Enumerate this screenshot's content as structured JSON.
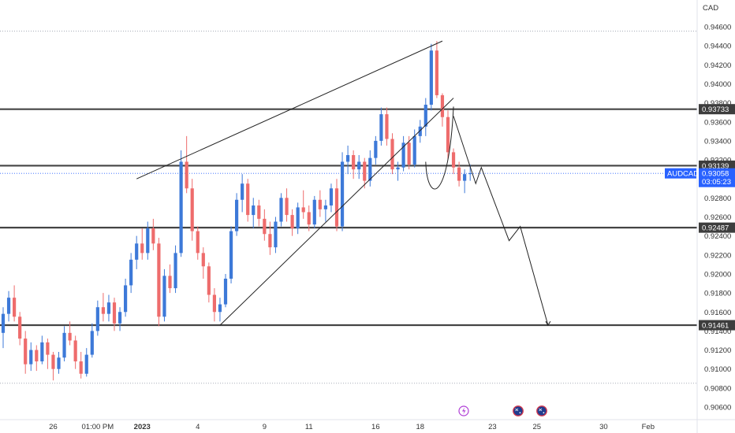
{
  "chart_data": {
    "type": "candlestick",
    "symbol": "AUDCAD",
    "currency": "CAD",
    "last_price": "0.93058",
    "countdown": "03:05:23",
    "ylim": [
      0.905,
      0.947
    ],
    "y_ticks": [
      "0.94600",
      "0.94400",
      "0.94200",
      "0.94000",
      "0.93800",
      "0.93600",
      "0.93400",
      "0.93200",
      "0.93000",
      "0.92800",
      "0.92600",
      "0.92400",
      "0.92200",
      "0.92000",
      "0.91800",
      "0.91600",
      "0.91400",
      "0.91200",
      "0.91000",
      "0.90800",
      "0.90600"
    ],
    "x_ticks": [
      "26",
      "01:00 PM",
      "2023",
      "4",
      "9",
      "11",
      "16",
      "18",
      "23",
      "25",
      "30",
      "Feb"
    ],
    "x_tick_bars": [
      9,
      17,
      25,
      35,
      47,
      55,
      67,
      75,
      88,
      96,
      108,
      116
    ],
    "levels": [
      {
        "price": 0.93733,
        "label": "0.93733"
      },
      {
        "price": 0.93139,
        "label": "0.93139"
      },
      {
        "price": 0.92487,
        "label": "0.92487"
      },
      {
        "price": 0.91461,
        "label": "0.91461"
      }
    ],
    "dotted_levels": [
      0.94555,
      0.9085
    ],
    "candles": [
      [
        0.9138,
        0.9165,
        0.9122,
        0.9158
      ],
      [
        0.9158,
        0.9182,
        0.915,
        0.9175
      ],
      [
        0.9175,
        0.9188,
        0.915,
        0.9155
      ],
      [
        0.9155,
        0.916,
        0.9125,
        0.9132
      ],
      [
        0.9132,
        0.914,
        0.9095,
        0.9105
      ],
      [
        0.9105,
        0.9128,
        0.9098,
        0.912
      ],
      [
        0.912,
        0.9125,
        0.9098,
        0.9108
      ],
      [
        0.9108,
        0.9135,
        0.9105,
        0.9128
      ],
      [
        0.9128,
        0.9132,
        0.91,
        0.9115
      ],
      [
        0.9115,
        0.9118,
        0.9088,
        0.91
      ],
      [
        0.91,
        0.9118,
        0.9095,
        0.9112
      ],
      [
        0.9112,
        0.9145,
        0.9108,
        0.9138
      ],
      [
        0.9138,
        0.915,
        0.9125,
        0.913
      ],
      [
        0.913,
        0.9135,
        0.91,
        0.9108
      ],
      [
        0.9108,
        0.9118,
        0.909,
        0.9095
      ],
      [
        0.9095,
        0.9122,
        0.9092,
        0.9115
      ],
      [
        0.9115,
        0.9148,
        0.9112,
        0.914
      ],
      [
        0.914,
        0.9172,
        0.9135,
        0.9165
      ],
      [
        0.9165,
        0.918,
        0.915,
        0.9158
      ],
      [
        0.9158,
        0.9178,
        0.915,
        0.917
      ],
      [
        0.917,
        0.9175,
        0.914,
        0.9148
      ],
      [
        0.9148,
        0.9165,
        0.914,
        0.916
      ],
      [
        0.916,
        0.9195,
        0.9155,
        0.9188
      ],
      [
        0.9188,
        0.9222,
        0.918,
        0.9215
      ],
      [
        0.9215,
        0.924,
        0.9205,
        0.9232
      ],
      [
        0.9232,
        0.9248,
        0.9215,
        0.9222
      ],
      [
        0.9222,
        0.9255,
        0.9215,
        0.9248
      ],
      [
        0.9248,
        0.9258,
        0.9225,
        0.9232
      ],
      [
        0.9232,
        0.9238,
        0.9145,
        0.9155
      ],
      [
        0.9155,
        0.9205,
        0.915,
        0.9198
      ],
      [
        0.9198,
        0.921,
        0.918,
        0.9185
      ],
      [
        0.9185,
        0.923,
        0.918,
        0.9222
      ],
      [
        0.9222,
        0.933,
        0.9218,
        0.9318
      ],
      [
        0.9318,
        0.9345,
        0.9285,
        0.929
      ],
      [
        0.929,
        0.93,
        0.9235,
        0.9245
      ],
      [
        0.9245,
        0.925,
        0.9215,
        0.9222
      ],
      [
        0.9222,
        0.9228,
        0.9195,
        0.9208
      ],
      [
        0.9208,
        0.9212,
        0.917,
        0.9178
      ],
      [
        0.9178,
        0.9185,
        0.915,
        0.916
      ],
      [
        0.916,
        0.9175,
        0.915,
        0.9168
      ],
      [
        0.9168,
        0.92,
        0.9165,
        0.9195
      ],
      [
        0.9195,
        0.925,
        0.919,
        0.9245
      ],
      [
        0.9245,
        0.9285,
        0.924,
        0.9278
      ],
      [
        0.9278,
        0.9305,
        0.9265,
        0.9295
      ],
      [
        0.9295,
        0.93,
        0.9255,
        0.9262
      ],
      [
        0.9262,
        0.928,
        0.9248,
        0.9272
      ],
      [
        0.9272,
        0.9278,
        0.925,
        0.9258
      ],
      [
        0.9258,
        0.9268,
        0.9235,
        0.9242
      ],
      [
        0.9242,
        0.9255,
        0.922,
        0.9228
      ],
      [
        0.9228,
        0.926,
        0.9222,
        0.9255
      ],
      [
        0.9255,
        0.9285,
        0.925,
        0.928
      ],
      [
        0.928,
        0.929,
        0.9255,
        0.9262
      ],
      [
        0.9262,
        0.9268,
        0.924,
        0.9248
      ],
      [
        0.9248,
        0.9275,
        0.9242,
        0.927
      ],
      [
        0.927,
        0.9288,
        0.9258,
        0.9265
      ],
      [
        0.9265,
        0.9272,
        0.9245,
        0.9252
      ],
      [
        0.9252,
        0.9282,
        0.9248,
        0.9278
      ],
      [
        0.9278,
        0.9288,
        0.926,
        0.9268
      ],
      [
        0.9268,
        0.9278,
        0.9255,
        0.9272
      ],
      [
        0.9272,
        0.9295,
        0.9265,
        0.929
      ],
      [
        0.929,
        0.93,
        0.9245,
        0.925
      ],
      [
        0.925,
        0.9328,
        0.9245,
        0.9318
      ],
      [
        0.9318,
        0.9335,
        0.9305,
        0.9325
      ],
      [
        0.9325,
        0.933,
        0.93,
        0.931
      ],
      [
        0.931,
        0.9325,
        0.93,
        0.9318
      ],
      [
        0.9318,
        0.9322,
        0.929,
        0.9298
      ],
      [
        0.9298,
        0.933,
        0.9292,
        0.9322
      ],
      [
        0.9322,
        0.9345,
        0.9315,
        0.934
      ],
      [
        0.934,
        0.9375,
        0.9335,
        0.9368
      ],
      [
        0.9368,
        0.9375,
        0.9335,
        0.9342
      ],
      [
        0.9342,
        0.9348,
        0.9305,
        0.931
      ],
      [
        0.931,
        0.9318,
        0.9298,
        0.9312
      ],
      [
        0.9312,
        0.9345,
        0.9308,
        0.9338
      ],
      [
        0.9338,
        0.9345,
        0.931,
        0.9315
      ],
      [
        0.9315,
        0.9352,
        0.9312,
        0.9345
      ],
      [
        0.9345,
        0.9362,
        0.9338,
        0.9355
      ],
      [
        0.9355,
        0.9385,
        0.9345,
        0.9378
      ],
      [
        0.9378,
        0.9442,
        0.9372,
        0.9435
      ],
      [
        0.9435,
        0.9445,
        0.9385,
        0.9388
      ],
      [
        0.9388,
        0.939,
        0.9355,
        0.9365
      ],
      [
        0.9365,
        0.9372,
        0.932,
        0.9328
      ],
      [
        0.9328,
        0.9332,
        0.9305,
        0.9312
      ],
      [
        0.9312,
        0.9318,
        0.9292,
        0.9298
      ],
      [
        0.9298,
        0.931,
        0.9285,
        0.9305
      ],
      [
        0.9305,
        0.9315,
        0.9298,
        0.9306
      ]
    ],
    "drawings": {
      "upper_trendline": [
        [
          24,
          0.93
        ],
        [
          79,
          0.9445
        ]
      ],
      "lower_trendline": [
        [
          39,
          0.9146
        ],
        [
          81,
          0.9385
        ]
      ],
      "projection": [
        [
          81,
          0.9366
        ],
        [
          85,
          0.9295
        ],
        [
          86,
          0.9312
        ],
        [
          91,
          0.9235
        ],
        [
          93,
          0.925
        ],
        [
          98,
          0.9146
        ]
      ],
      "curve": [
        [
          76,
          0.9318
        ],
        [
          79,
          0.9283
        ],
        [
          81,
          0.9376
        ]
      ]
    },
    "colors": {
      "up": "#3d79d8",
      "down": "#ee6c6c",
      "level_line": "#444444",
      "label_bg": "#3d3d3d",
      "symbol_bg": "#2962ff"
    }
  }
}
